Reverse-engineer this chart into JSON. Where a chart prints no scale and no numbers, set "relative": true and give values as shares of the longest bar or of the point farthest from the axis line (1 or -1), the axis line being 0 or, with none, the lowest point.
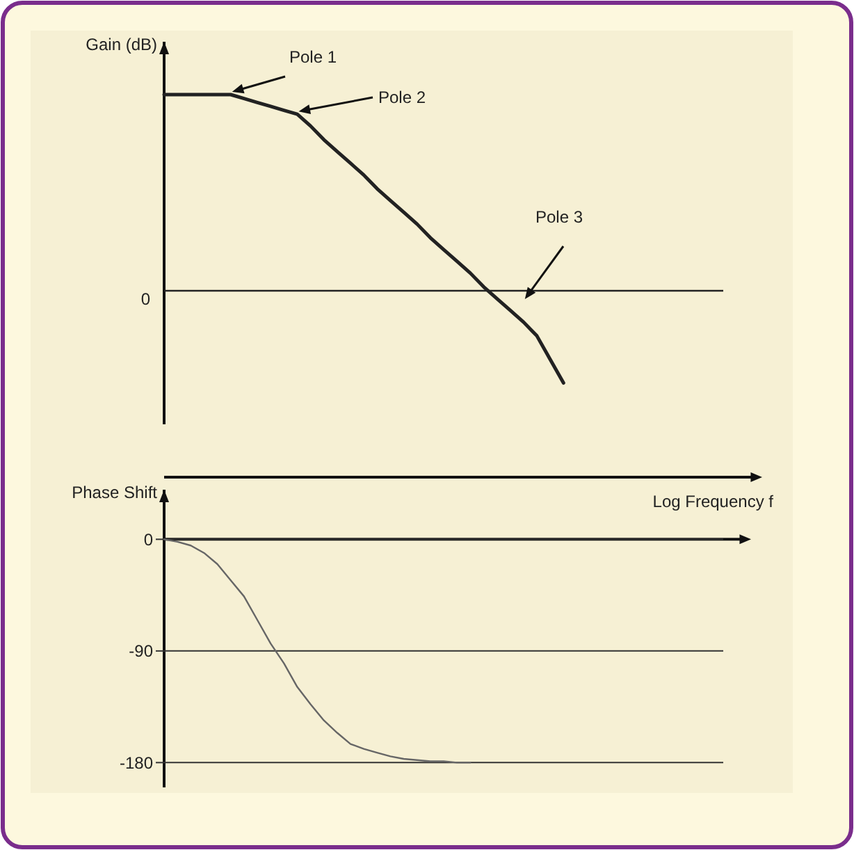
{
  "chart_data": [
    {
      "type": "line",
      "ylabel": "Gain (dB)",
      "relative": true,
      "color": "#222222",
      "annotations": [
        "0",
        "Pole 1",
        "Pole 2",
        "Pole 3"
      ],
      "categories": [
        null,
        null,
        null,
        null,
        null,
        null,
        null,
        null,
        null,
        null,
        null,
        null,
        null,
        null,
        null,
        null,
        null,
        null,
        null,
        null,
        null,
        null,
        null,
        null,
        null,
        null,
        null,
        null,
        null,
        null,
        null,
        null,
        null,
        null,
        null,
        null,
        null,
        null,
        null,
        null,
        null,
        null,
        null
      ],
      "values": [
        1,
        1,
        1,
        1,
        1,
        1,
        0.98,
        0.96,
        0.94,
        0.92,
        0.9,
        0.84,
        0.77,
        0.71,
        0.65,
        0.59,
        0.52,
        0.46,
        0.4,
        0.34,
        0.27,
        0.21,
        0.15,
        0.09,
        0.02,
        -0.04,
        -0.1,
        -0.16,
        -0.23,
        -0.35,
        -0.47,
        null,
        null,
        null,
        null,
        null,
        null,
        null,
        null,
        null,
        null,
        null,
        null
      ]
    },
    {
      "type": "line",
      "ylabel": "Phase Shift",
      "xlabel": "Log Frequency f",
      "color": "#666666",
      "ylim": [
        -200,
        40
      ],
      "yticks": [
        0,
        -90,
        -180
      ],
      "grid": "y",
      "categories": [
        null,
        null,
        null,
        null,
        null,
        null,
        null,
        null,
        null,
        null,
        null,
        null,
        null,
        null,
        null,
        null,
        null,
        null,
        null,
        null,
        null,
        null,
        null,
        null,
        null,
        null,
        null,
        null,
        null,
        null,
        null,
        null,
        null,
        null,
        null,
        null,
        null,
        null,
        null,
        null,
        null,
        null,
        null
      ],
      "values": [
        0,
        -2,
        -5,
        -11,
        -20,
        -33,
        -46,
        -65,
        -84,
        -100,
        -119,
        -133,
        -146,
        -156,
        -165,
        -169,
        -172,
        -175,
        -177,
        -178,
        -179,
        -179,
        -180,
        -180,
        null,
        null,
        null,
        null,
        null,
        null,
        null,
        null,
        null,
        null,
        null,
        null,
        null,
        null,
        null,
        null,
        null,
        null,
        null
      ]
    }
  ]
}
